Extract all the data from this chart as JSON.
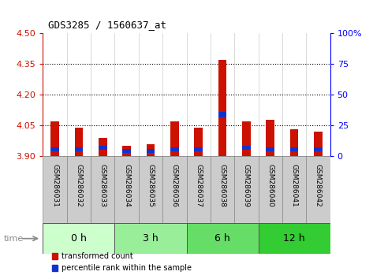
{
  "title": "GDS3285 / 1560637_at",
  "samples": [
    "GSM286031",
    "GSM286032",
    "GSM286033",
    "GSM286034",
    "GSM286035",
    "GSM286036",
    "GSM286037",
    "GSM286038",
    "GSM286039",
    "GSM286040",
    "GSM286041",
    "GSM286042"
  ],
  "transformed_count": [
    4.07,
    4.04,
    3.99,
    3.95,
    3.96,
    4.07,
    4.04,
    4.37,
    4.07,
    4.08,
    4.03,
    4.02
  ],
  "percentile_bottom": [
    3.925,
    3.925,
    3.93,
    3.915,
    3.915,
    3.925,
    3.925,
    4.09,
    3.93,
    3.925,
    3.925,
    3.925
  ],
  "percentile_top": [
    3.945,
    3.945,
    3.95,
    3.935,
    3.935,
    3.945,
    3.945,
    4.115,
    3.95,
    3.945,
    3.945,
    3.945
  ],
  "ylim_left": [
    3.9,
    4.5
  ],
  "ylim_right": [
    0,
    100
  ],
  "yticks_left": [
    3.9,
    4.05,
    4.2,
    4.35,
    4.5
  ],
  "yticks_right": [
    0,
    25,
    50,
    75,
    100
  ],
  "bar_color_red": "#cc1100",
  "bar_color_blue": "#1133cc",
  "bar_width": 0.35,
  "time_colors": [
    "#ccffcc",
    "#99ee99",
    "#66dd66",
    "#33cc33"
  ],
  "time_labels": [
    "0 h",
    "3 h",
    "6 h",
    "12 h"
  ],
  "time_ranges": [
    [
      0,
      3
    ],
    [
      3,
      6
    ],
    [
      6,
      9
    ],
    [
      9,
      12
    ]
  ],
  "legend_red": "transformed count",
  "legend_blue": "percentile rank within the sample",
  "grid_lines": [
    4.05,
    4.2,
    4.35
  ],
  "label_box_color": "#cccccc",
  "label_box_border": "#888888"
}
